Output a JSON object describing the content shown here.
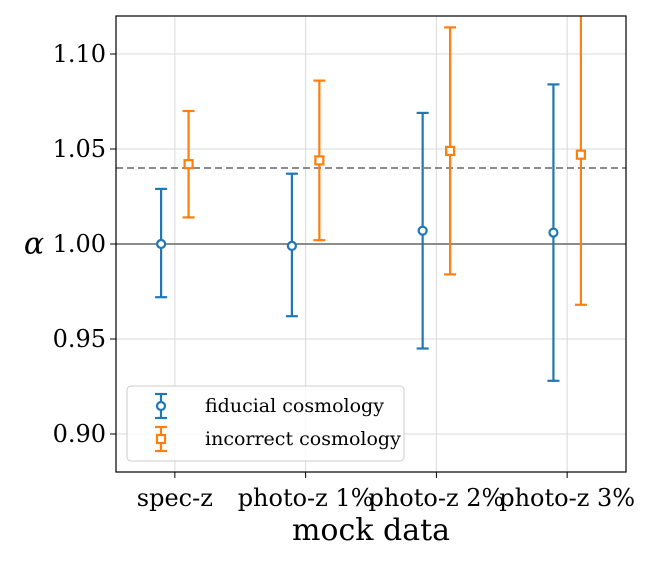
{
  "chart_data": {
    "type": "errorbar",
    "categories": [
      "spec-z",
      "photo-z 1%",
      "photo-z 2%",
      "photo-z 3%"
    ],
    "xlabel": "mock data",
    "ylabel": "α",
    "ylim": [
      0.88,
      1.12
    ],
    "yticks": [
      0.9,
      0.95,
      1.0,
      1.05,
      1.1
    ],
    "ytick_labels": [
      "0.90",
      "0.95",
      "1.00",
      "1.05",
      "1.10"
    ],
    "grid": true,
    "legend_position": "lower-left",
    "reference_lines": [
      {
        "y": 1.0,
        "style": "solid",
        "color": "#666666"
      },
      {
        "y": 1.04,
        "style": "dashed",
        "color": "#666666"
      }
    ],
    "series": [
      {
        "name": "fiducial cosmology",
        "marker": "circle",
        "color": "#1f77b4",
        "values": [
          1.0,
          0.999,
          1.007,
          1.006
        ],
        "lower": [
          0.972,
          0.962,
          0.945,
          0.928
        ],
        "upper": [
          1.029,
          1.037,
          1.069,
          1.084
        ]
      },
      {
        "name": "incorrect cosmology",
        "marker": "square",
        "color": "#ff7f0e",
        "values": [
          1.042,
          1.044,
          1.049,
          1.047
        ],
        "lower": [
          1.014,
          1.002,
          0.984,
          0.968
        ],
        "upper": [
          1.07,
          1.086,
          1.114,
          1.125
        ]
      }
    ]
  }
}
